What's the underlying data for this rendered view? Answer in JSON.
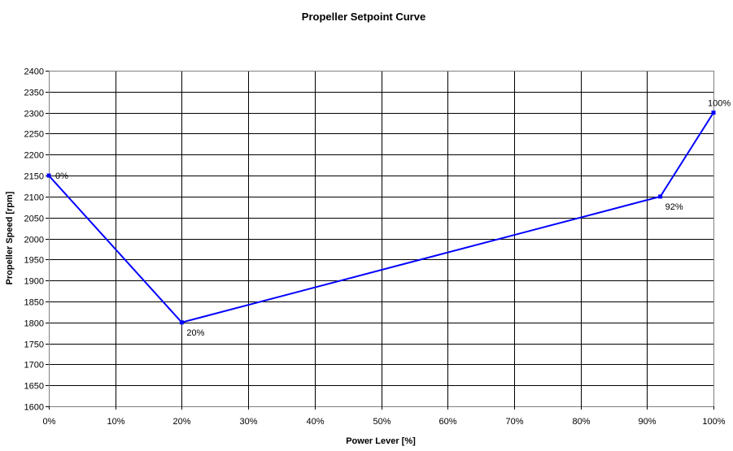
{
  "chart_data": {
    "type": "line",
    "title": "Propeller Setpoint Curve",
    "xlabel": "Power Lever [%]",
    "ylabel": "Propeller Speed [rpm]",
    "xlim": [
      0,
      100
    ],
    "ylim": [
      1600,
      2400
    ],
    "x_ticks": [
      0,
      10,
      20,
      30,
      40,
      50,
      60,
      70,
      80,
      90,
      100
    ],
    "x_tick_labels": [
      "0%",
      "10%",
      "20%",
      "30%",
      "40%",
      "50%",
      "60%",
      "70%",
      "80%",
      "90%",
      "100%"
    ],
    "y_ticks": [
      1600,
      1650,
      1700,
      1750,
      1800,
      1850,
      1900,
      1950,
      2000,
      2050,
      2100,
      2150,
      2200,
      2250,
      2300,
      2350,
      2400
    ],
    "y_tick_labels": [
      "1600",
      "1650",
      "1700",
      "1750",
      "1800",
      "1850",
      "1900",
      "1950",
      "2000",
      "2050",
      "2100",
      "2150",
      "2200",
      "2250",
      "2300",
      "2350",
      "2400"
    ],
    "grid": true,
    "legend": "none",
    "series": [
      {
        "color": "#0000ff",
        "points": [
          {
            "x": 0,
            "y": 2150,
            "label": "0%",
            "label_pos": "right"
          },
          {
            "x": 20,
            "y": 1800,
            "label": "20%",
            "label_pos": "below-right"
          },
          {
            "x": 92,
            "y": 2100,
            "label": "92%",
            "label_pos": "below-right"
          },
          {
            "x": 100,
            "y": 2300,
            "label": "100%",
            "label_pos": "above"
          }
        ]
      }
    ]
  }
}
